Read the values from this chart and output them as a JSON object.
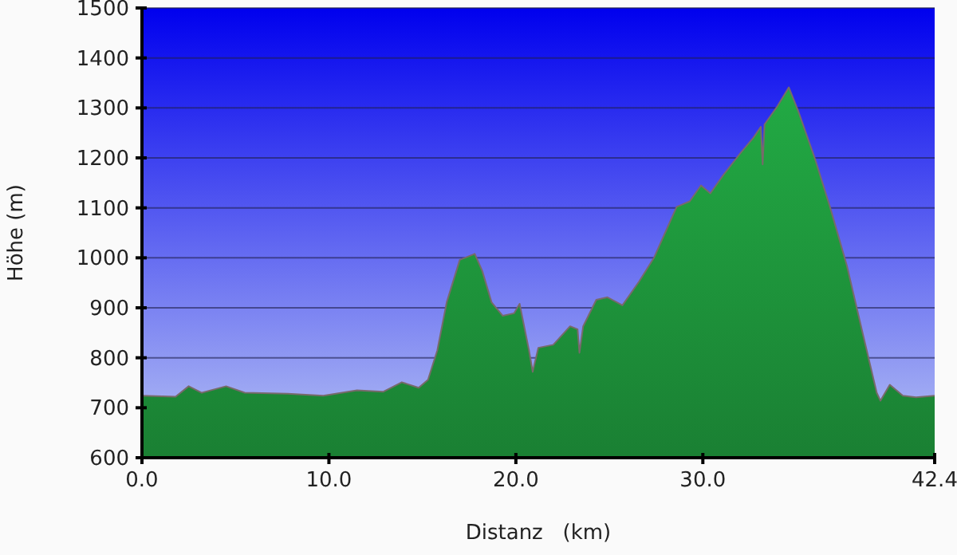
{
  "chart_data": {
    "type": "area",
    "xlabel": "Distanz   (km)",
    "ylabel": "Höhe (m)",
    "xlim": [
      0,
      42.4
    ],
    "ylim": [
      600,
      1500
    ],
    "xticks": [
      {
        "value": 0,
        "label": "0.0"
      },
      {
        "value": 10,
        "label": "10.0"
      },
      {
        "value": 20,
        "label": "20.0"
      },
      {
        "value": 30,
        "label": "30.0"
      },
      42.4
    ],
    "yticks": [
      600,
      700,
      800,
      900,
      1000,
      1100,
      1200,
      1300,
      1400,
      1500
    ],
    "grid": "y",
    "series": [
      {
        "color": "#22aa44",
        "x": [
          0,
          1.8,
          2.5,
          3.2,
          4.5,
          5.5,
          7.8,
          9.7,
          11.5,
          12.9,
          13.9,
          14.8,
          15.3,
          15.8,
          16.3,
          17.0,
          17.8,
          18.2,
          18.7,
          19.3,
          19.9,
          20.2,
          20.7,
          20.9,
          21.2,
          22.0,
          22.9,
          23.3,
          23.4,
          23.6,
          24.3,
          24.9,
          25.7,
          26.6,
          27.4,
          28.1,
          28.6,
          29.3,
          29.9,
          30.4,
          31.1,
          32.0,
          32.7,
          33.1,
          33.2,
          33.3,
          34.0,
          34.6,
          35.1,
          36.0,
          36.8,
          37.7,
          38.5,
          39.3,
          39.5,
          40.0,
          40.7,
          41.4,
          42.4
        ],
        "values": [
          724,
          722,
          743,
          730,
          743,
          730,
          728,
          724,
          735,
          732,
          751,
          740,
          756,
          815,
          911,
          996,
          1008,
          974,
          911,
          884,
          889,
          908,
          815,
          772,
          820,
          826,
          863,
          857,
          810,
          863,
          916,
          921,
          905,
          953,
          1001,
          1060,
          1102,
          1113,
          1145,
          1129,
          1166,
          1209,
          1240,
          1262,
          1187,
          1267,
          1304,
          1341,
          1294,
          1198,
          1102,
          985,
          857,
          730,
          714,
          746,
          724,
          721,
          724
        ]
      }
    ]
  }
}
